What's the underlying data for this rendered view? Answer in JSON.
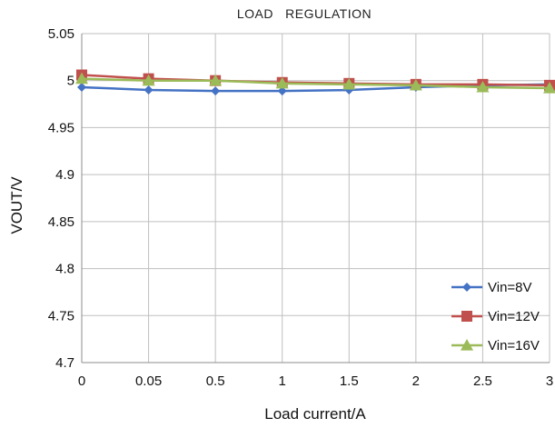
{
  "chart_data": {
    "type": "line",
    "title": "LOAD   REGULATION",
    "xlabel": "Load current/A",
    "ylabel": "VOUT/V",
    "categories": [
      "0",
      "0.05",
      "0.5",
      "1",
      "1.5",
      "2",
      "2.5",
      "3"
    ],
    "y_ticks": [
      "4.7",
      "4.75",
      "4.8",
      "4.85",
      "4.9",
      "4.95",
      "5",
      "5.05"
    ],
    "ylim": [
      4.7,
      5.05
    ],
    "grid": true,
    "legend_position": "bottom-right",
    "series": [
      {
        "name": "Vin=8V",
        "color": "#4472C4",
        "marker": "diamond",
        "values": [
          4.993,
          4.99,
          4.989,
          4.989,
          4.99,
          4.993,
          4.995,
          4.996
        ]
      },
      {
        "name": "Vin=12V",
        "color": "#C0504D",
        "marker": "square",
        "values": [
          5.006,
          5.002,
          5.0,
          4.998,
          4.997,
          4.996,
          4.996,
          4.995
        ]
      },
      {
        "name": "Vin=16V",
        "color": "#9BBB59",
        "marker": "triangle",
        "values": [
          5.002,
          5.0,
          5.0,
          4.997,
          4.996,
          4.995,
          4.993,
          4.992
        ]
      }
    ]
  }
}
